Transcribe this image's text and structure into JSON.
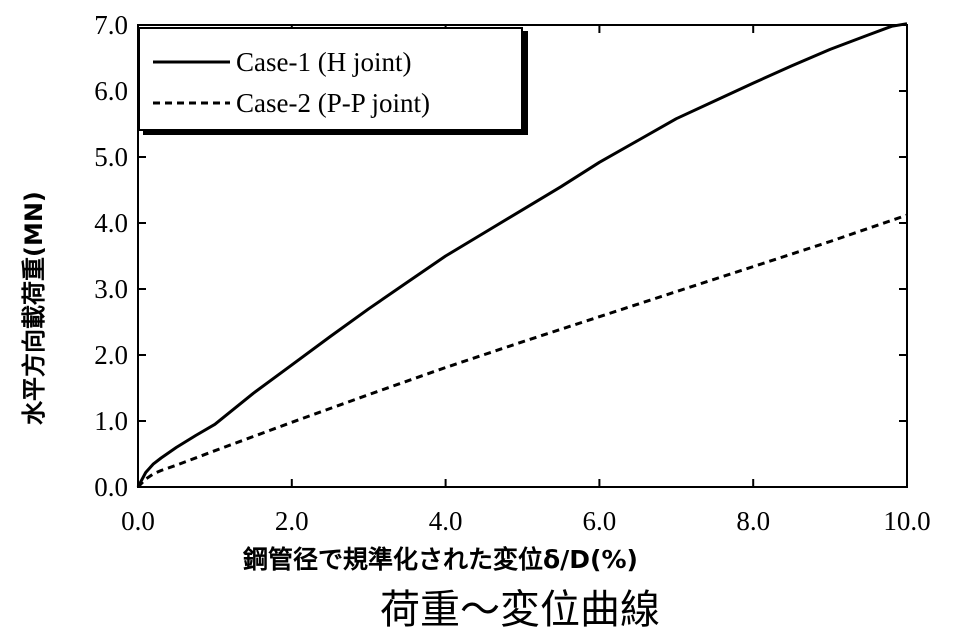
{
  "chart_data": {
    "type": "line",
    "xlabel": "鋼管径で規準化された変位δ/D(%)",
    "ylabel": "水平方向載荷重(MN)",
    "caption": "荷重～変位曲線",
    "xlim": [
      0,
      10
    ],
    "ylim": [
      0,
      7
    ],
    "xticks": [
      "0.0",
      "2.0",
      "4.0",
      "6.0",
      "8.0",
      "10.0"
    ],
    "yticks": [
      "0.0",
      "1.0",
      "2.0",
      "3.0",
      "4.0",
      "5.0",
      "6.0",
      "7.0"
    ],
    "grid": false,
    "legend_position": "top-left",
    "series": [
      {
        "name": "Case-1 (H joint)",
        "style": "solid",
        "x": [
          0,
          0.1,
          0.2,
          0.3,
          0.5,
          0.75,
          1.0,
          1.5,
          2.0,
          2.5,
          3.0,
          3.5,
          4.0,
          4.5,
          5.0,
          5.5,
          6.0,
          6.5,
          7.0,
          7.5,
          8.0,
          8.5,
          9.0,
          9.5,
          9.8,
          10.0
        ],
        "y": [
          0,
          0.22,
          0.35,
          0.44,
          0.6,
          0.78,
          0.95,
          1.42,
          1.85,
          2.28,
          2.7,
          3.1,
          3.5,
          3.85,
          4.2,
          4.55,
          4.92,
          5.25,
          5.58,
          5.85,
          6.12,
          6.38,
          6.63,
          6.85,
          6.98,
          7.02
        ]
      },
      {
        "name": "Case-2 (P-P joint)",
        "style": "dashed",
        "x": [
          0,
          0.1,
          0.2,
          0.3,
          0.5,
          1.0,
          2.0,
          3.0,
          4.0,
          5.0,
          6.0,
          7.0,
          8.0,
          9.0,
          10.0
        ],
        "y": [
          0,
          0.12,
          0.2,
          0.25,
          0.33,
          0.55,
          0.98,
          1.4,
          1.81,
          2.2,
          2.58,
          2.96,
          3.34,
          3.72,
          4.12
        ]
      }
    ]
  }
}
